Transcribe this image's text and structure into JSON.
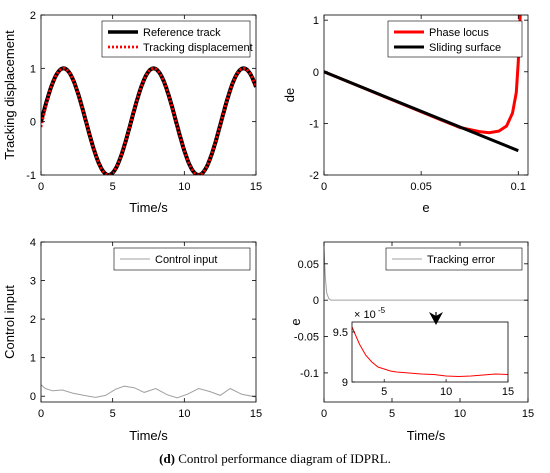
{
  "caption": {
    "panel": "(d)",
    "text": "Control performance diagram of IDPRL."
  },
  "chart_data": [
    {
      "id": "tracking-displacement",
      "type": "line",
      "xlabel": "Time/s",
      "ylabel": "Tracking displacement",
      "xlim": [
        0,
        15
      ],
      "ylim": [
        -1,
        2
      ],
      "xticks": [
        "0",
        "5",
        "10",
        "15"
      ],
      "yticks": [
        "-1",
        "0",
        "1",
        "2"
      ],
      "legend_position": "top-right",
      "series": [
        {
          "name": "Reference track",
          "color": "#000000",
          "style": "solid",
          "function": "sin(t)",
          "x": [
            0,
            1.57,
            4.71,
            7.85,
            11.0,
            14.14,
            15
          ],
          "y": [
            0,
            1,
            -1,
            1,
            -1,
            1,
            0.65
          ]
        },
        {
          "name": "Tracking displacement",
          "color": "#ff0000",
          "style": "dotted",
          "function": "sin(t)",
          "x": [
            0,
            1.57,
            4.71,
            7.85,
            11.0,
            14.14,
            15
          ],
          "y": [
            -0.1,
            1,
            -1,
            1,
            -1,
            1,
            0.65
          ]
        }
      ]
    },
    {
      "id": "phase-locus",
      "type": "line",
      "xlabel": "e",
      "ylabel": "de",
      "xlim": [
        0,
        0.105
      ],
      "ylim": [
        -2,
        1.1
      ],
      "xticks": [
        "0",
        "0.05",
        "0.1"
      ],
      "yticks": [
        "-2",
        "-1",
        "0",
        "1"
      ],
      "legend_position": "top-right",
      "series": [
        {
          "name": "Phase locus",
          "color": "#ff0000",
          "x": [
            0.0,
            0.02,
            0.04,
            0.06,
            0.07,
            0.08,
            0.085,
            0.09,
            0.094,
            0.097,
            0.099,
            0.1,
            0.1005,
            0.101
          ],
          "y": [
            0.0,
            -0.31,
            -0.62,
            -0.93,
            -1.08,
            -1.16,
            -1.18,
            -1.15,
            -1.05,
            -0.8,
            -0.4,
            0.2,
            0.7,
            1.1
          ]
        },
        {
          "name": "Sliding surface",
          "color": "#000000",
          "x": [
            0,
            0.1
          ],
          "y": [
            0,
            -1.53
          ]
        }
      ]
    },
    {
      "id": "control-input",
      "type": "line",
      "xlabel": "Time/s",
      "ylabel": "Control input",
      "xlim": [
        0,
        15
      ],
      "ylim": [
        -0.15,
        4
      ],
      "xticks": [
        "0",
        "5",
        "10",
        "15"
      ],
      "yticks": [
        "0",
        "1",
        "2",
        "3",
        "4"
      ],
      "legend_position": "top-right",
      "series": [
        {
          "name": "Control input",
          "color": "#a0a0a0",
          "x": [
            0,
            0.3,
            0.8,
            1.5,
            2.2,
            3.0,
            3.8,
            4.5,
            5.2,
            5.8,
            6.5,
            7.2,
            8.0,
            8.8,
            9.5,
            10.2,
            11.0,
            11.8,
            12.5,
            13.2,
            14.0,
            15.0
          ],
          "y": [
            0.3,
            0.2,
            0.14,
            0.16,
            0.08,
            0.02,
            -0.03,
            0.02,
            0.18,
            0.26,
            0.22,
            0.1,
            0.2,
            0.04,
            -0.04,
            0.05,
            0.2,
            0.12,
            0.02,
            0.2,
            0.05,
            -0.02
          ]
        }
      ]
    },
    {
      "id": "tracking-error",
      "type": "line",
      "xlabel": "Time/s",
      "ylabel": "e",
      "xlim": [
        0,
        15
      ],
      "ylim": [
        -0.14,
        0.08
      ],
      "xticks": [
        "0",
        "5",
        "10",
        "15"
      ],
      "yticks": [
        "-0.1",
        "-0.05",
        "0",
        "0.05"
      ],
      "legend_position": "top-right",
      "series": [
        {
          "name": "Tracking error",
          "color": "#a0a0a0",
          "x": [
            0,
            0.1,
            0.2,
            0.35,
            0.5,
            1,
            15
          ],
          "y": [
            0.07,
            0.03,
            0.01,
            0.002,
            0.0001,
            0.0001,
            0.0001
          ]
        }
      ],
      "inset": {
        "type": "line",
        "scale_label": "× 10",
        "scale_exponent": "-5",
        "xlim": [
          2.4,
          15
        ],
        "ylim": [
          9.0,
          9.6
        ],
        "xticks": [
          "5",
          "10",
          "15"
        ],
        "yticks": [
          "9",
          "9.5"
        ],
        "series": [
          {
            "color": "#ff0000",
            "x": [
              2.4,
              3,
              3.5,
              4,
              4.5,
              5,
              5.5,
              6,
              7,
              8,
              9,
              10,
              11,
              12,
              13,
              14,
              15
            ],
            "y": [
              9.55,
              9.38,
              9.27,
              9.2,
              9.15,
              9.13,
              9.11,
              9.1,
              9.09,
              9.08,
              9.075,
              9.06,
              9.055,
              9.06,
              9.07,
              9.08,
              9.075
            ]
          }
        ]
      }
    }
  ]
}
